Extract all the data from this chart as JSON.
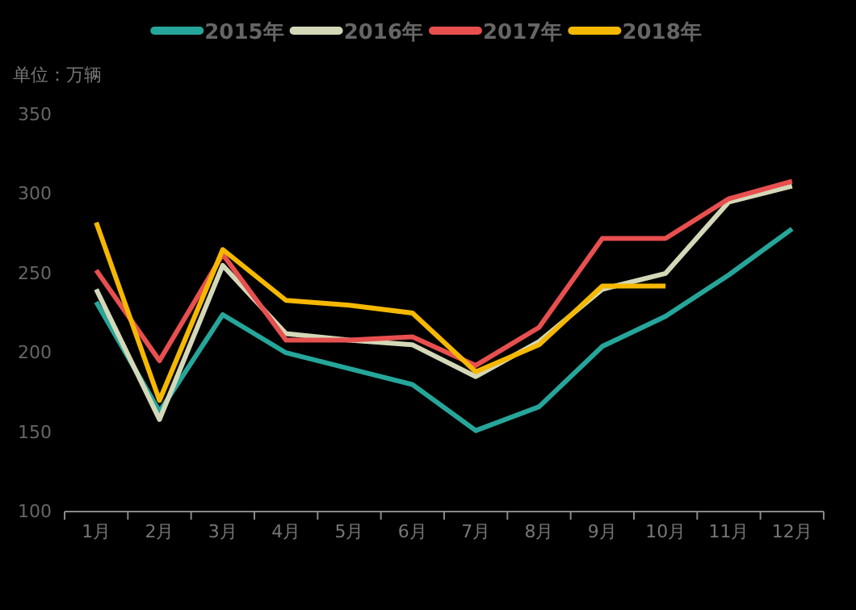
{
  "chart_data": {
    "type": "line",
    "ylabel": "单位：万辆",
    "categories": [
      "1月",
      "2月",
      "3月",
      "4月",
      "5月",
      "6月",
      "7月",
      "8月",
      "9月",
      "10月",
      "11月",
      "12月"
    ],
    "series": [
      {
        "name": "2015年",
        "color": "#26a69a",
        "values": [
          232,
          163,
          224,
          200,
          190,
          180,
          151,
          166,
          204,
          223,
          249,
          278
        ]
      },
      {
        "name": "2016年",
        "color": "#d4d8b8",
        "values": [
          240,
          158,
          255,
          212,
          208,
          205,
          185,
          207,
          240,
          250,
          295,
          305
        ]
      },
      {
        "name": "2017年",
        "color": "#e84f4f",
        "values": [
          252,
          195,
          262,
          208,
          208,
          210,
          192,
          216,
          272,
          272,
          297,
          308
        ]
      },
      {
        "name": "2018年",
        "color": "#f5b800",
        "values": [
          282,
          170,
          265,
          233,
          230,
          225,
          188,
          205,
          242,
          242,
          null,
          null
        ]
      }
    ],
    "ylim": [
      100,
      350
    ],
    "yticks": [
      100,
      150,
      200,
      250,
      300,
      350
    ],
    "grid": false,
    "legend": "top",
    "marker": "none",
    "line_style": "solid"
  }
}
